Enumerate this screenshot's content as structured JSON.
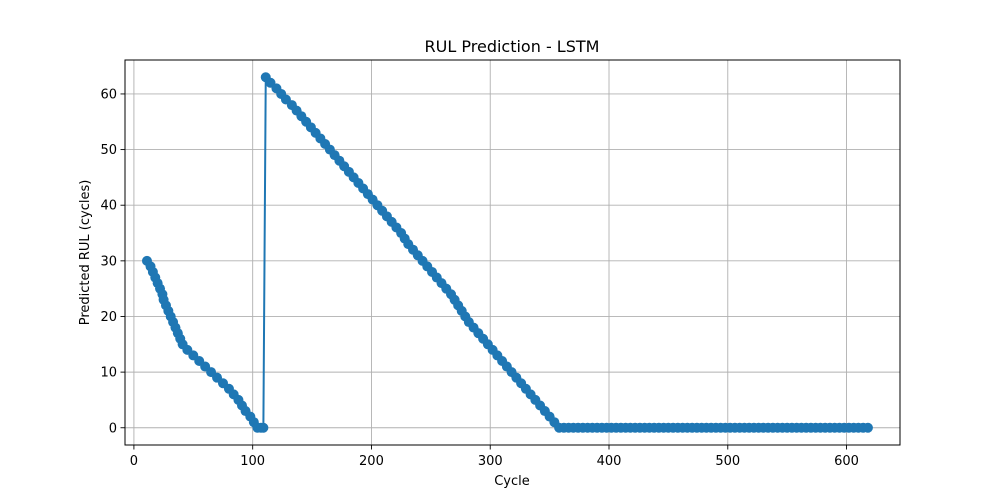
{
  "chart_data": {
    "type": "line",
    "title": "RUL Prediction - LSTM",
    "xlabel": "Cycle",
    "ylabel": "Predicted RUL (cycles)",
    "xlim": [
      -7.5,
      645
    ],
    "ylim": [
      -3.1,
      66.1
    ],
    "xticks": [
      0,
      100,
      200,
      300,
      400,
      500,
      600
    ],
    "yticks": [
      0,
      10,
      20,
      30,
      40,
      50,
      60
    ],
    "grid": true,
    "colors": {
      "series": "#1f77b4"
    },
    "series": [
      {
        "marker": "circle",
        "points": [
          [
            11,
            30
          ],
          [
            14,
            29
          ],
          [
            16,
            28
          ],
          [
            18,
            27
          ],
          [
            20,
            26
          ],
          [
            22,
            25
          ],
          [
            24,
            24
          ],
          [
            25,
            23
          ],
          [
            27,
            22
          ],
          [
            29,
            21
          ],
          [
            31,
            20
          ],
          [
            33,
            19
          ],
          [
            35,
            18
          ],
          [
            37,
            17
          ],
          [
            39,
            16
          ],
          [
            41,
            15
          ],
          [
            45,
            14
          ],
          [
            50,
            13
          ],
          [
            55,
            12
          ],
          [
            60,
            11
          ],
          [
            65,
            10
          ],
          [
            70,
            9
          ],
          [
            75,
            8
          ],
          [
            80,
            7
          ],
          [
            84,
            6
          ],
          [
            88,
            5
          ],
          [
            91,
            4
          ],
          [
            94,
            3
          ],
          [
            98,
            2
          ],
          [
            101,
            1
          ],
          [
            104,
            0
          ],
          [
            107,
            0
          ],
          [
            109,
            0
          ],
          [
            111,
            63
          ],
          [
            115,
            62
          ],
          [
            120,
            61
          ],
          [
            124,
            60
          ],
          [
            128,
            59
          ],
          [
            133,
            58
          ],
          [
            137,
            57
          ],
          [
            141,
            56
          ],
          [
            145,
            55
          ],
          [
            149,
            54
          ],
          [
            153,
            53
          ],
          [
            157,
            52
          ],
          [
            161,
            51
          ],
          [
            165,
            50
          ],
          [
            169,
            49
          ],
          [
            173,
            48
          ],
          [
            177,
            47
          ],
          [
            181,
            46
          ],
          [
            185,
            45
          ],
          [
            189,
            44
          ],
          [
            193,
            43
          ],
          [
            197,
            42
          ],
          [
            201,
            41
          ],
          [
            205,
            40
          ],
          [
            209,
            39
          ],
          [
            213,
            38
          ],
          [
            217,
            37
          ],
          [
            221,
            36
          ],
          [
            225,
            35
          ],
          [
            228,
            34
          ],
          [
            231,
            33
          ],
          [
            235,
            32
          ],
          [
            239,
            31
          ],
          [
            243,
            30
          ],
          [
            247,
            29
          ],
          [
            251,
            28
          ],
          [
            255,
            27
          ],
          [
            259,
            26
          ],
          [
            263,
            25
          ],
          [
            267,
            24
          ],
          [
            270,
            23
          ],
          [
            273,
            22
          ],
          [
            276,
            21
          ],
          [
            279,
            20
          ],
          [
            282,
            19
          ],
          [
            286,
            18
          ],
          [
            290,
            17
          ],
          [
            294,
            16
          ],
          [
            298,
            15
          ],
          [
            302,
            14
          ],
          [
            306,
            13
          ],
          [
            310,
            12
          ],
          [
            314,
            11
          ],
          [
            318,
            10
          ],
          [
            322,
            9
          ],
          [
            326,
            8
          ],
          [
            330,
            7
          ],
          [
            334,
            6
          ],
          [
            338,
            5
          ],
          [
            342,
            4
          ],
          [
            346,
            3
          ],
          [
            350,
            2
          ],
          [
            354,
            1
          ],
          [
            358,
            0
          ],
          [
            362,
            0
          ],
          [
            366,
            0
          ],
          [
            370,
            0
          ],
          [
            374,
            0
          ],
          [
            378,
            0
          ],
          [
            382,
            0
          ],
          [
            386,
            0
          ],
          [
            390,
            0
          ],
          [
            394,
            0
          ],
          [
            398,
            0
          ],
          [
            402,
            0
          ],
          [
            406,
            0
          ],
          [
            410,
            0
          ],
          [
            414,
            0
          ],
          [
            418,
            0
          ],
          [
            422,
            0
          ],
          [
            426,
            0
          ],
          [
            430,
            0
          ],
          [
            434,
            0
          ],
          [
            438,
            0
          ],
          [
            442,
            0
          ],
          [
            446,
            0
          ],
          [
            450,
            0
          ],
          [
            454,
            0
          ],
          [
            458,
            0
          ],
          [
            462,
            0
          ],
          [
            466,
            0
          ],
          [
            470,
            0
          ],
          [
            474,
            0
          ],
          [
            478,
            0
          ],
          [
            482,
            0
          ],
          [
            486,
            0
          ],
          [
            490,
            0
          ],
          [
            494,
            0
          ],
          [
            498,
            0
          ],
          [
            502,
            0
          ],
          [
            506,
            0
          ],
          [
            510,
            0
          ],
          [
            514,
            0
          ],
          [
            518,
            0
          ],
          [
            522,
            0
          ],
          [
            526,
            0
          ],
          [
            530,
            0
          ],
          [
            534,
            0
          ],
          [
            538,
            0
          ],
          [
            542,
            0
          ],
          [
            546,
            0
          ],
          [
            550,
            0
          ],
          [
            554,
            0
          ],
          [
            558,
            0
          ],
          [
            562,
            0
          ],
          [
            566,
            0
          ],
          [
            570,
            0
          ],
          [
            574,
            0
          ],
          [
            578,
            0
          ],
          [
            582,
            0
          ],
          [
            586,
            0
          ],
          [
            590,
            0
          ],
          [
            594,
            0
          ],
          [
            598,
            0
          ],
          [
            602,
            0
          ],
          [
            606,
            0
          ],
          [
            610,
            0
          ],
          [
            614,
            0
          ],
          [
            618,
            0
          ]
        ]
      }
    ]
  }
}
